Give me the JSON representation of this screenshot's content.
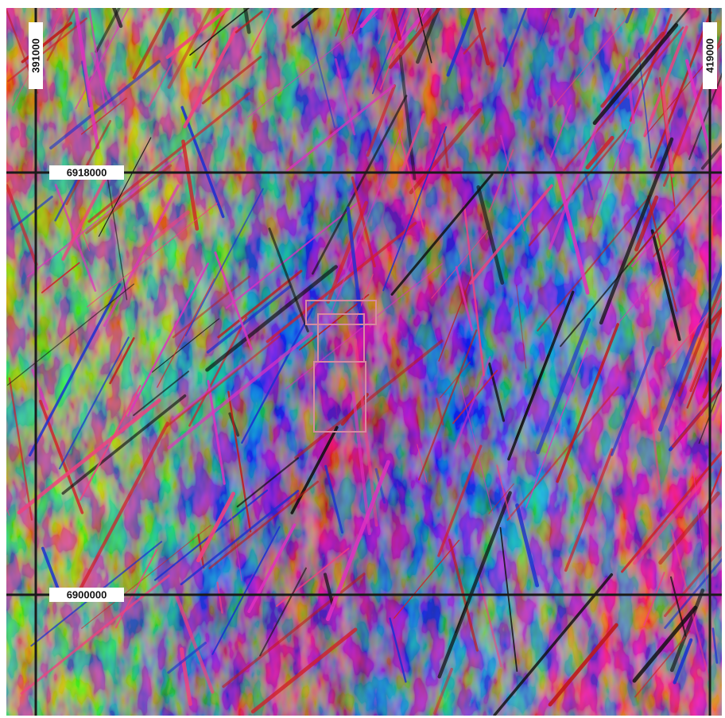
{
  "grid_labels": {
    "easting": [
      "391000",
      "419000"
    ],
    "northing": [
      "6918000",
      "6900000"
    ]
  }
}
